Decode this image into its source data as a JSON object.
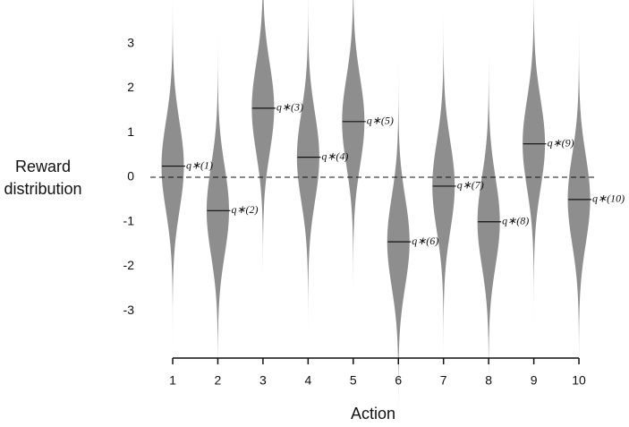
{
  "chart_data": {
    "type": "violin",
    "xlabel": "Action",
    "ylabel": "Reward distribution",
    "categories": [
      "1",
      "2",
      "3",
      "4",
      "5",
      "6",
      "7",
      "8",
      "9",
      "10"
    ],
    "values": [
      0.25,
      -0.75,
      1.55,
      0.45,
      1.25,
      -1.45,
      -0.2,
      -1.0,
      0.75,
      -0.5
    ],
    "labels": [
      "q∗(1)",
      "q∗(2)",
      "q∗(3)",
      "q∗(4)",
      "q∗(5)",
      "q∗(6)",
      "q∗(7)",
      "q∗(8)",
      "q∗(9)",
      "q∗(10)"
    ],
    "spread": 1,
    "color": "#8e8e8e",
    "reference_line": 0,
    "ylim": [
      -4,
      4
    ],
    "yticks": [
      -3,
      -2,
      -1,
      0,
      1,
      2,
      3
    ]
  }
}
